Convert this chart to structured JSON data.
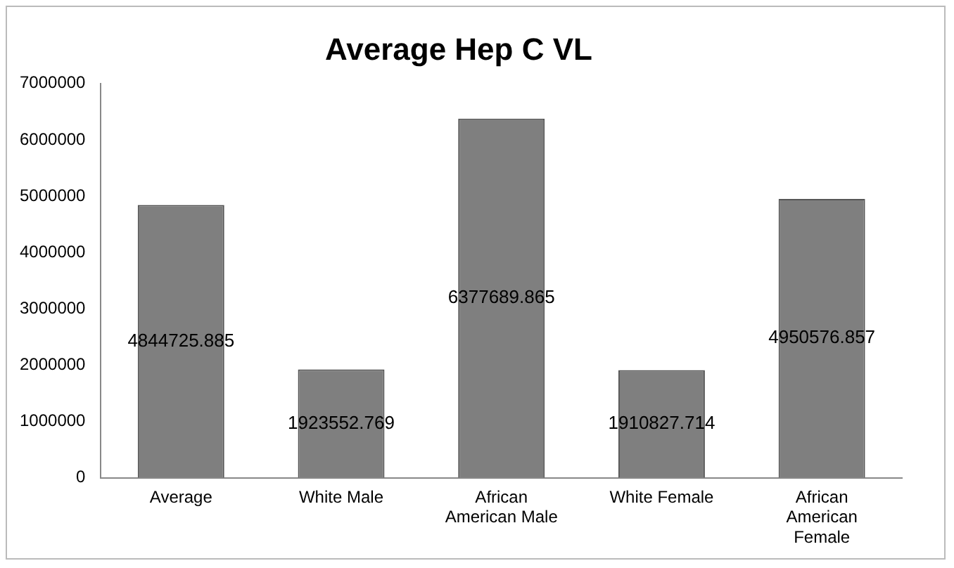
{
  "chart_data": {
    "type": "bar",
    "title": "Average Hep C VL",
    "categories": [
      "Average",
      "White Male",
      "African American Male",
      "White Female",
      "African American Female"
    ],
    "values": [
      4844725.885,
      1923552.769,
      6377689.865,
      1910827.714,
      4950576.857
    ],
    "color": "#7f7f7f",
    "ylim": [
      0,
      7000000
    ],
    "yticks": [
      0,
      1000000,
      2000000,
      3000000,
      4000000,
      5000000,
      6000000,
      7000000
    ],
    "grid": false,
    "legend": false,
    "data_labels": true
  }
}
